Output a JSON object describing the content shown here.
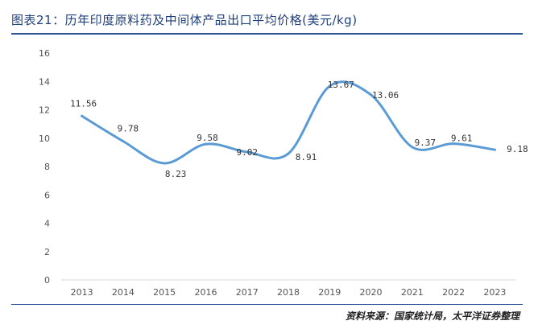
{
  "figure": {
    "title": "图表21：历年印度原料药及中间体产品出口平均价格(美元/kg)",
    "source": "资料来源：国家统计局，太平洋证券整理"
  },
  "colors": {
    "line": "#5b9bd5",
    "title": "#1f3f7a",
    "rule": "#2f5597",
    "axis": "#d9d9d9"
  },
  "chart_data": {
    "type": "line",
    "title": "历年印度原料药及中间体产品出口平均价格(美元/kg)",
    "xlabel": "",
    "ylabel": "",
    "ylim": [
      0,
      16
    ],
    "yticks": [
      "0",
      "2",
      "4",
      "6",
      "8",
      "10",
      "12",
      "14",
      "16"
    ],
    "categories": [
      "2013",
      "2014",
      "2015",
      "2016",
      "2017",
      "2018",
      "2019",
      "2020",
      "2021",
      "2022",
      "2023"
    ],
    "series": [
      {
        "name": "出口平均价格",
        "values": [
          11.56,
          9.78,
          8.23,
          9.58,
          9.02,
          8.91,
          13.67,
          13.06,
          9.37,
          9.61,
          9.18
        ],
        "labels": [
          "11.56",
          "9.78",
          "8.23",
          "9.58",
          "9.02",
          "8.91",
          "13.67",
          "13.06",
          "9.37",
          "9.61",
          "9.18"
        ]
      }
    ],
    "grid": false,
    "legend": "none"
  }
}
